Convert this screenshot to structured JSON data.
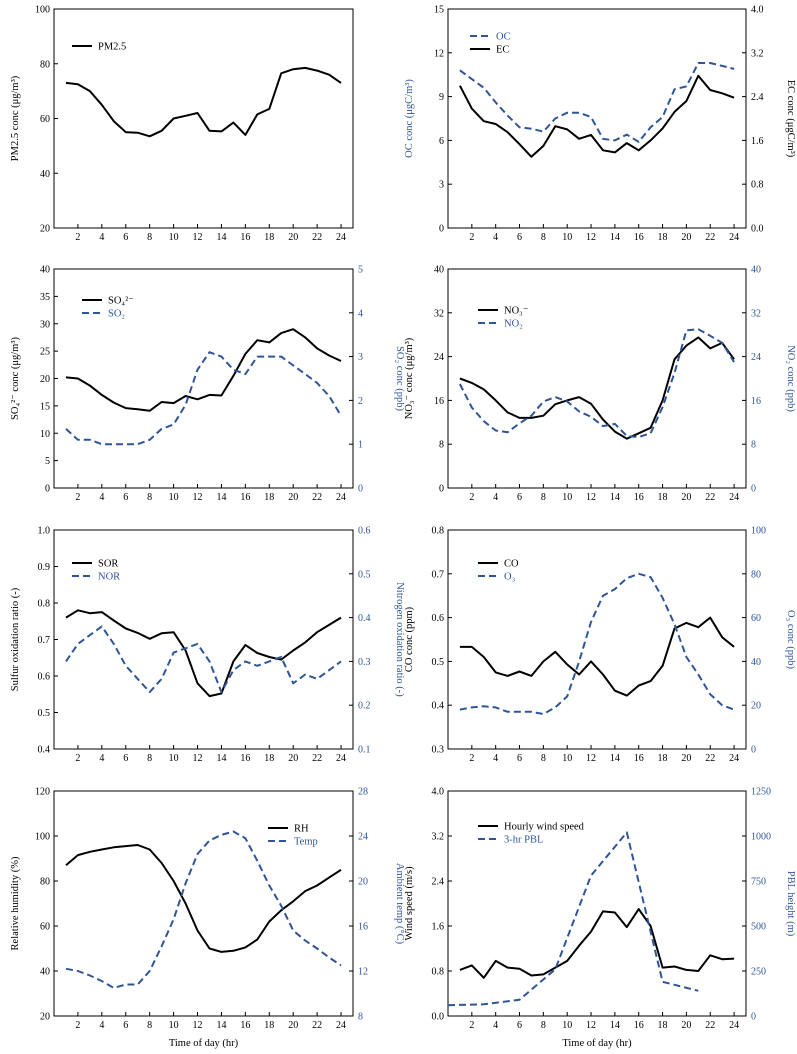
{
  "chart_data": [
    {
      "type": "line",
      "x": [
        1,
        2,
        3,
        4,
        5,
        6,
        7,
        8,
        9,
        10,
        11,
        12,
        13,
        14,
        15,
        16,
        17,
        18,
        19,
        20,
        21,
        22,
        23,
        24
      ],
      "xlim": [
        0,
        25
      ],
      "xticks": [
        "2",
        "4",
        "6",
        "8",
        "10",
        "12",
        "14",
        "16",
        "18",
        "20",
        "22",
        "24"
      ],
      "xlabel": "",
      "ylabel_left": "PM2.5 conc (μg/m³)",
      "ylim_left": [
        20,
        100
      ],
      "yticks_left": [
        "20",
        "40",
        "60",
        "80",
        "100"
      ],
      "series": [
        {
          "name": "PM2.5",
          "axis": "left",
          "style": "solid",
          "values": [
            73,
            72.5,
            70,
            65,
            59,
            55,
            54.8,
            53.5,
            55.5,
            60,
            61,
            62,
            55.5,
            55.3,
            58.5,
            54,
            61.5,
            63.5,
            76.5,
            78,
            78.5,
            77.5,
            76,
            73
          ]
        }
      ]
    },
    {
      "type": "line",
      "x": [
        1,
        2,
        3,
        4,
        5,
        6,
        7,
        8,
        9,
        10,
        11,
        12,
        13,
        14,
        15,
        16,
        17,
        18,
        19,
        20,
        21,
        22,
        23,
        24
      ],
      "xlim": [
        0,
        25
      ],
      "xticks": [
        "2",
        "4",
        "6",
        "8",
        "10",
        "12",
        "14",
        "16",
        "18",
        "20",
        "22",
        "24"
      ],
      "xlabel": "",
      "ylabel_left": "OC conc (μgC/m³)",
      "ylim_left": [
        0,
        15
      ],
      "yticks_left": [
        "0",
        "3",
        "6",
        "9",
        "12",
        "15"
      ],
      "ylabel_right": "EC conc (μgC/m³)",
      "ylim_right": [
        0,
        4
      ],
      "yticks_right": [
        "0.0",
        "0.8",
        "1.6",
        "2.4",
        "3.2",
        "4.0"
      ],
      "series": [
        {
          "name": "OC",
          "axis": "left",
          "style": "dashed",
          "values": [
            10.8,
            10.2,
            9.6,
            8.6,
            7.7,
            6.9,
            6.8,
            6.6,
            7.5,
            7.9,
            7.9,
            7.6,
            6.1,
            6.0,
            6.4,
            5.9,
            6.9,
            7.6,
            9.5,
            9.7,
            11.3,
            11.3,
            11.1,
            10.9
          ]
        },
        {
          "name": "EC",
          "axis": "right",
          "style": "solid",
          "values": [
            2.6,
            2.18,
            1.95,
            1.9,
            1.75,
            1.53,
            1.3,
            1.5,
            1.86,
            1.8,
            1.63,
            1.7,
            1.42,
            1.38,
            1.55,
            1.42,
            1.6,
            1.82,
            2.12,
            2.32,
            2.78,
            2.52,
            2.46,
            2.38
          ]
        }
      ]
    },
    {
      "type": "line",
      "x": [
        1,
        2,
        3,
        4,
        5,
        6,
        7,
        8,
        9,
        10,
        11,
        12,
        13,
        14,
        15,
        16,
        17,
        18,
        19,
        20,
        21,
        22,
        23,
        24
      ],
      "xlim": [
        0,
        25
      ],
      "xticks": [
        "2",
        "4",
        "6",
        "8",
        "10",
        "12",
        "14",
        "16",
        "18",
        "20",
        "22",
        "24"
      ],
      "xlabel": "",
      "ylabel_left": "SO₄²⁻ conc (μg/m³)",
      "ylim_left": [
        0,
        40
      ],
      "yticks_left": [
        "0",
        "5",
        "10",
        "15",
        "20",
        "25",
        "30",
        "35",
        "40"
      ],
      "ylabel_right": "SO₂ conc (ppb)",
      "ylim_right": [
        0,
        5
      ],
      "yticks_right": [
        "0",
        "1",
        "2",
        "3",
        "4",
        "5"
      ],
      "series": [
        {
          "name": "SO₄²⁻",
          "axis": "left",
          "style": "solid",
          "values": [
            20.2,
            20,
            18.7,
            17,
            15.6,
            14.6,
            14.4,
            14.1,
            15.7,
            15.5,
            16.8,
            16.2,
            17,
            16.9,
            20.5,
            24.5,
            27,
            26.6,
            28.3,
            29,
            27.5,
            25.5,
            24.2,
            23.2
          ]
        },
        {
          "name": "SO₂",
          "axis": "right",
          "style": "dashed",
          "values": [
            1.35,
            1.1,
            1.1,
            1.0,
            1.0,
            1.0,
            1.0,
            1.1,
            1.35,
            1.45,
            1.9,
            2.7,
            3.1,
            3.0,
            2.7,
            2.6,
            3.0,
            3.0,
            3.0,
            2.8,
            2.6,
            2.4,
            2.1,
            1.65
          ]
        }
      ]
    },
    {
      "type": "line",
      "x": [
        1,
        2,
        3,
        4,
        5,
        6,
        7,
        8,
        9,
        10,
        11,
        12,
        13,
        14,
        15,
        16,
        17,
        18,
        19,
        20,
        21,
        22,
        23,
        24
      ],
      "xlim": [
        0,
        25
      ],
      "xticks": [
        "2",
        "4",
        "6",
        "8",
        "10",
        "12",
        "14",
        "16",
        "18",
        "20",
        "22",
        "24"
      ],
      "xlabel": "",
      "ylabel_left": "NO₃⁻ conc (μg/m³)",
      "ylim_left": [
        0,
        40
      ],
      "yticks_left": [
        "0",
        "8",
        "16",
        "24",
        "32",
        "40"
      ],
      "ylabel_right": "NO₂ conc (ppb)",
      "ylim_right": [
        0,
        40
      ],
      "yticks_right": [
        "0",
        "8",
        "16",
        "24",
        "32",
        "40"
      ],
      "series": [
        {
          "name": "NO₃⁻",
          "axis": "left",
          "style": "solid",
          "values": [
            20,
            19.2,
            18,
            16,
            13.8,
            12.8,
            12.8,
            13.2,
            15.3,
            16,
            16.6,
            15.4,
            12.5,
            10.3,
            9,
            10,
            11,
            16,
            23.5,
            26,
            27.5,
            25.5,
            26.5,
            23.5
          ]
        },
        {
          "name": "NO₂",
          "axis": "right",
          "style": "dashed",
          "values": [
            19,
            14.7,
            12.2,
            10.5,
            10.2,
            11.8,
            13.2,
            15.8,
            16.6,
            15.8,
            14,
            13,
            11.3,
            11.7,
            9.5,
            9.3,
            10,
            14.8,
            21,
            28.8,
            29,
            27.8,
            26.5,
            23
          ]
        }
      ]
    },
    {
      "type": "line",
      "x": [
        1,
        2,
        3,
        4,
        5,
        6,
        7,
        8,
        9,
        10,
        11,
        12,
        13,
        14,
        15,
        16,
        17,
        18,
        19,
        20,
        21,
        22,
        23,
        24
      ],
      "xlim": [
        0,
        25
      ],
      "xticks": [
        "2",
        "4",
        "6",
        "8",
        "10",
        "12",
        "14",
        "16",
        "18",
        "20",
        "22",
        "24"
      ],
      "xlabel": "",
      "ylabel_left": "Sulfur oxidation ratio (-)",
      "ylim_left": [
        0.4,
        1.0
      ],
      "yticks_left": [
        "0.4",
        "0.5",
        "0.6",
        "0.7",
        "0.8",
        "0.9",
        "1.0"
      ],
      "ylabel_right": "Nitrogen oxidation ratio (-)",
      "ylim_right": [
        0.1,
        0.6
      ],
      "yticks_right": [
        "0.1",
        "0.2",
        "0.3",
        "0.4",
        "0.5",
        "0.6"
      ],
      "series": [
        {
          "name": "SOR",
          "axis": "left",
          "style": "solid",
          "values": [
            0.76,
            0.78,
            0.772,
            0.775,
            0.752,
            0.73,
            0.718,
            0.702,
            0.717,
            0.72,
            0.67,
            0.58,
            0.545,
            0.552,
            0.64,
            0.685,
            0.663,
            0.652,
            0.645,
            0.67,
            0.692,
            0.72,
            0.74,
            0.76
          ]
        },
        {
          "name": "NOR",
          "axis": "right",
          "style": "dashed",
          "values": [
            0.3,
            0.34,
            0.36,
            0.38,
            0.34,
            0.29,
            0.26,
            0.23,
            0.26,
            0.32,
            0.33,
            0.34,
            0.3,
            0.23,
            0.28,
            0.3,
            0.29,
            0.3,
            0.31,
            0.25,
            0.27,
            0.26,
            0.28,
            0.3
          ]
        }
      ]
    },
    {
      "type": "line",
      "x": [
        1,
        2,
        3,
        4,
        5,
        6,
        7,
        8,
        9,
        10,
        11,
        12,
        13,
        14,
        15,
        16,
        17,
        18,
        19,
        20,
        21,
        22,
        23,
        24
      ],
      "xlim": [
        0,
        25
      ],
      "xticks": [
        "2",
        "4",
        "6",
        "8",
        "10",
        "12",
        "14",
        "16",
        "18",
        "20",
        "22",
        "24"
      ],
      "xlabel": "",
      "ylabel_left": "CO conc (ppm)",
      "ylim_left": [
        0.3,
        0.8
      ],
      "yticks_left": [
        "0.3",
        "0.4",
        "0.5",
        "0.6",
        "0.7",
        "0.8"
      ],
      "ylabel_right": "O₃ conc (ppb)",
      "ylim_right": [
        0,
        100
      ],
      "yticks_right": [
        "0",
        "20",
        "40",
        "60",
        "80",
        "100"
      ],
      "series": [
        {
          "name": "CO",
          "axis": "left",
          "style": "solid",
          "values": [
            0.533,
            0.533,
            0.51,
            0.475,
            0.467,
            0.477,
            0.467,
            0.5,
            0.522,
            0.493,
            0.47,
            0.5,
            0.47,
            0.433,
            0.422,
            0.445,
            0.455,
            0.49,
            0.575,
            0.588,
            0.578,
            0.6,
            0.555,
            0.533
          ]
        },
        {
          "name": "O₃",
          "axis": "right",
          "style": "dashed",
          "values": [
            18,
            19,
            19.5,
            19,
            17,
            17,
            17,
            16,
            19,
            24,
            40,
            58,
            70,
            73,
            78,
            80,
            78.5,
            69,
            57,
            42,
            34,
            25,
            20,
            18
          ]
        }
      ]
    },
    {
      "type": "line",
      "x": [
        1,
        2,
        3,
        4,
        5,
        6,
        7,
        8,
        9,
        10,
        11,
        12,
        13,
        14,
        15,
        16,
        17,
        18,
        19,
        20,
        21,
        22,
        23,
        24
      ],
      "xlim": [
        0,
        25
      ],
      "xticks": [
        "2",
        "4",
        "6",
        "8",
        "10",
        "12",
        "14",
        "16",
        "18",
        "20",
        "22",
        "24"
      ],
      "xlabel": "Time of day (hr)",
      "ylabel_left": "Relative humidity (%)",
      "ylim_left": [
        20,
        120
      ],
      "yticks_left": [
        "20",
        "40",
        "60",
        "80",
        "100",
        "120"
      ],
      "ylabel_right": "Ambient temp (°C)",
      "ylim_right": [
        8,
        28
      ],
      "yticks_right": [
        "8",
        "12",
        "16",
        "20",
        "24",
        "28"
      ],
      "series": [
        {
          "name": "RH",
          "axis": "left",
          "style": "solid",
          "values": [
            87,
            91.5,
            93,
            94,
            95,
            95.5,
            96,
            94,
            88,
            80,
            70,
            58,
            50,
            48.5,
            49,
            50.5,
            54,
            62,
            67,
            71,
            75.5,
            78,
            81.5,
            85
          ]
        },
        {
          "name": "Temp",
          "axis": "right",
          "style": "dashed",
          "values": [
            12.2,
            12,
            11.6,
            11.1,
            10.5,
            10.8,
            10.8,
            12,
            14.2,
            16.6,
            19.8,
            22.4,
            23.6,
            24.1,
            24.4,
            23.8,
            21.8,
            19.6,
            17.8,
            15.6,
            14.7,
            14,
            13.2,
            12.5
          ]
        }
      ]
    },
    {
      "type": "line",
      "x": [
        1,
        2,
        3,
        4,
        5,
        6,
        7,
        8,
        9,
        10,
        11,
        12,
        13,
        14,
        15,
        16,
        17,
        18,
        19,
        20,
        21,
        22,
        23,
        24
      ],
      "xlim": [
        0,
        25
      ],
      "xticks": [
        "2",
        "4",
        "6",
        "8",
        "10",
        "12",
        "14",
        "16",
        "18",
        "20",
        "22",
        "24"
      ],
      "xlabel": "Time of day (hr)",
      "ylabel_left": "Wind speed (m/s)",
      "ylim_left": [
        0,
        4
      ],
      "yticks_left": [
        "0.0",
        "0.8",
        "1.6",
        "2.4",
        "3.2",
        "4.0"
      ],
      "ylabel_right": "PBL height (m)",
      "ylim_right": [
        0,
        1250
      ],
      "yticks_right": [
        "0",
        "250",
        "500",
        "750",
        "1000",
        "1250"
      ],
      "series": [
        {
          "name": "Hourly wind speed",
          "axis": "left",
          "style": "solid",
          "values": [
            0.82,
            0.9,
            0.68,
            0.98,
            0.86,
            0.84,
            0.72,
            0.74,
            0.86,
            0.98,
            1.25,
            1.5,
            1.86,
            1.84,
            1.58,
            1.9,
            1.6,
            0.86,
            0.88,
            0.82,
            0.8,
            1.08,
            1.01,
            1.02
          ]
        },
        {
          "name": "3-hr PBL",
          "axis": "right",
          "style": "dashed",
          "x": [
            0,
            3,
            6,
            9,
            12,
            15,
            18,
            21
          ],
          "values": [
            60,
            65,
            90,
            260,
            780,
            1020,
            190,
            140
          ]
        }
      ]
    }
  ]
}
